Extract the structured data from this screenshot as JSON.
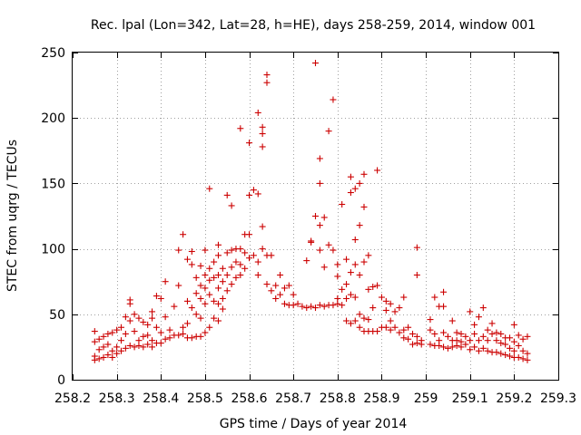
{
  "chart_data": {
    "type": "scatter",
    "title": "Rec. lpal (Lon=342, Lat=28, h=HE), days 258-259, 2014, window 001",
    "xlabel": "GPS time / Days of year 2014",
    "ylabel": "STEC from uqrg / TECUs",
    "xlim": [
      258.2,
      259.3
    ],
    "ylim": [
      0,
      250
    ],
    "grid": true,
    "marker": "+",
    "marker_color": "#cc0000",
    "x_ticks": [
      "258.2",
      "258.3",
      "258.4",
      "258.5",
      "258.6",
      "258.7",
      "258.8",
      "258.9",
      "259",
      "259.1",
      "259.2",
      "259.3"
    ],
    "y_ticks": [
      "0",
      "50",
      "100",
      "150",
      "200",
      "250"
    ],
    "x_tick_values": [
      258.2,
      258.3,
      258.4,
      258.5,
      258.6,
      258.7,
      258.8,
      258.9,
      259.0,
      259.1,
      259.2,
      259.3
    ],
    "y_tick_values": [
      0,
      50,
      100,
      150,
      200,
      250
    ],
    "points": [
      [
        258.25,
        37
      ],
      [
        258.25,
        29
      ],
      [
        258.25,
        18
      ],
      [
        258.25,
        15
      ],
      [
        258.26,
        31
      ],
      [
        258.26,
        23
      ],
      [
        258.26,
        16
      ],
      [
        258.27,
        33
      ],
      [
        258.27,
        25
      ],
      [
        258.27,
        17
      ],
      [
        258.28,
        35
      ],
      [
        258.28,
        27
      ],
      [
        258.28,
        19
      ],
      [
        258.29,
        36
      ],
      [
        258.29,
        22
      ],
      [
        258.29,
        17
      ],
      [
        258.3,
        38
      ],
      [
        258.3,
        25
      ],
      [
        258.3,
        20
      ],
      [
        258.31,
        40
      ],
      [
        258.31,
        30
      ],
      [
        258.31,
        22
      ],
      [
        258.32,
        48
      ],
      [
        258.32,
        35
      ],
      [
        258.32,
        24
      ],
      [
        258.33,
        61
      ],
      [
        258.33,
        58
      ],
      [
        258.33,
        45
      ],
      [
        258.33,
        26
      ],
      [
        258.34,
        50
      ],
      [
        258.34,
        37
      ],
      [
        258.34,
        25
      ],
      [
        258.35,
        47
      ],
      [
        258.35,
        30
      ],
      [
        258.35,
        26
      ],
      [
        258.36,
        44
      ],
      [
        258.36,
        33
      ],
      [
        258.36,
        25
      ],
      [
        258.37,
        42
      ],
      [
        258.37,
        34
      ],
      [
        258.37,
        27
      ],
      [
        258.38,
        52
      ],
      [
        258.38,
        47
      ],
      [
        258.38,
        30
      ],
      [
        258.38,
        25
      ],
      [
        258.39,
        64
      ],
      [
        258.39,
        40
      ],
      [
        258.39,
        28
      ],
      [
        258.4,
        62
      ],
      [
        258.4,
        36
      ],
      [
        258.4,
        28
      ],
      [
        258.41,
        75
      ],
      [
        258.41,
        48
      ],
      [
        258.41,
        31
      ],
      [
        258.42,
        38
      ],
      [
        258.42,
        32
      ],
      [
        258.43,
        56
      ],
      [
        258.43,
        34
      ],
      [
        258.44,
        99
      ],
      [
        258.44,
        72
      ],
      [
        258.44,
        34
      ],
      [
        258.45,
        111
      ],
      [
        258.45,
        40
      ],
      [
        258.45,
        35
      ],
      [
        258.46,
        92
      ],
      [
        258.46,
        60
      ],
      [
        258.46,
        43
      ],
      [
        258.46,
        32
      ],
      [
        258.47,
        98
      ],
      [
        258.47,
        88
      ],
      [
        258.47,
        55
      ],
      [
        258.47,
        32
      ],
      [
        258.48,
        78
      ],
      [
        258.48,
        66
      ],
      [
        258.48,
        50
      ],
      [
        258.48,
        33
      ],
      [
        258.49,
        87
      ],
      [
        258.49,
        72
      ],
      [
        258.49,
        62
      ],
      [
        258.49,
        47
      ],
      [
        258.49,
        33
      ],
      [
        258.5,
        99
      ],
      [
        258.5,
        80
      ],
      [
        258.5,
        70
      ],
      [
        258.5,
        58
      ],
      [
        258.5,
        36
      ],
      [
        258.51,
        146
      ],
      [
        258.51,
        85
      ],
      [
        258.51,
        76
      ],
      [
        258.51,
        65
      ],
      [
        258.51,
        40
      ],
      [
        258.52,
        90
      ],
      [
        258.52,
        78
      ],
      [
        258.52,
        60
      ],
      [
        258.52,
        47
      ],
      [
        258.53,
        103
      ],
      [
        258.53,
        95
      ],
      [
        258.53,
        80
      ],
      [
        258.53,
        70
      ],
      [
        258.53,
        58
      ],
      [
        258.53,
        45
      ],
      [
        258.54,
        85
      ],
      [
        258.54,
        75
      ],
      [
        258.54,
        62
      ],
      [
        258.54,
        54
      ],
      [
        258.55,
        141
      ],
      [
        258.55,
        97
      ],
      [
        258.55,
        80
      ],
      [
        258.55,
        68
      ],
      [
        258.56,
        133
      ],
      [
        258.56,
        99
      ],
      [
        258.56,
        86
      ],
      [
        258.56,
        73
      ],
      [
        258.57,
        100
      ],
      [
        258.57,
        90
      ],
      [
        258.57,
        78
      ],
      [
        258.58,
        192
      ],
      [
        258.58,
        100
      ],
      [
        258.58,
        88
      ],
      [
        258.58,
        80
      ],
      [
        258.59,
        111
      ],
      [
        258.59,
        97
      ],
      [
        258.59,
        85
      ],
      [
        258.6,
        181
      ],
      [
        258.6,
        141
      ],
      [
        258.6,
        111
      ],
      [
        258.6,
        93
      ],
      [
        258.61,
        145
      ],
      [
        258.61,
        95
      ],
      [
        258.62,
        204
      ],
      [
        258.62,
        142
      ],
      [
        258.62,
        90
      ],
      [
        258.62,
        80
      ],
      [
        258.63,
        193
      ],
      [
        258.63,
        188
      ],
      [
        258.63,
        178
      ],
      [
        258.63,
        117
      ],
      [
        258.63,
        100
      ],
      [
        258.64,
        233
      ],
      [
        258.64,
        227
      ],
      [
        258.64,
        95
      ],
      [
        258.64,
        73
      ],
      [
        258.65,
        95
      ],
      [
        258.65,
        68
      ],
      [
        258.66,
        72
      ],
      [
        258.66,
        62
      ],
      [
        258.67,
        80
      ],
      [
        258.67,
        65
      ],
      [
        258.68,
        70
      ],
      [
        258.68,
        58
      ],
      [
        258.69,
        72
      ],
      [
        258.69,
        57
      ],
      [
        258.7,
        65
      ],
      [
        258.7,
        57
      ],
      [
        258.71,
        58
      ],
      [
        258.72,
        56
      ],
      [
        258.73,
        91
      ],
      [
        258.73,
        55
      ],
      [
        258.74,
        106
      ],
      [
        258.74,
        105
      ],
      [
        258.74,
        56
      ],
      [
        258.75,
        242
      ],
      [
        258.75,
        125
      ],
      [
        258.75,
        55
      ],
      [
        258.76,
        169
      ],
      [
        258.76,
        150
      ],
      [
        258.76,
        118
      ],
      [
        258.76,
        99
      ],
      [
        258.76,
        57
      ],
      [
        258.77,
        124
      ],
      [
        258.77,
        86
      ],
      [
        258.77,
        56
      ],
      [
        258.78,
        190
      ],
      [
        258.78,
        103
      ],
      [
        258.78,
        57
      ],
      [
        258.79,
        214
      ],
      [
        258.79,
        99
      ],
      [
        258.79,
        57
      ],
      [
        258.8,
        88
      ],
      [
        258.8,
        79
      ],
      [
        258.8,
        62
      ],
      [
        258.8,
        58
      ],
      [
        258.81,
        134
      ],
      [
        258.81,
        69
      ],
      [
        258.81,
        57
      ],
      [
        258.82,
        92
      ],
      [
        258.82,
        73
      ],
      [
        258.82,
        62
      ],
      [
        258.82,
        45
      ],
      [
        258.83,
        155
      ],
      [
        258.83,
        143
      ],
      [
        258.83,
        82
      ],
      [
        258.83,
        65
      ],
      [
        258.83,
        43
      ],
      [
        258.84,
        146
      ],
      [
        258.84,
        107
      ],
      [
        258.84,
        88
      ],
      [
        258.84,
        63
      ],
      [
        258.84,
        45
      ],
      [
        258.85,
        150
      ],
      [
        258.85,
        118
      ],
      [
        258.85,
        80
      ],
      [
        258.85,
        50
      ],
      [
        258.85,
        40
      ],
      [
        258.86,
        157
      ],
      [
        258.86,
        132
      ],
      [
        258.86,
        90
      ],
      [
        258.86,
        47
      ],
      [
        258.86,
        37
      ],
      [
        258.87,
        95
      ],
      [
        258.87,
        69
      ],
      [
        258.87,
        46
      ],
      [
        258.87,
        37
      ],
      [
        258.88,
        71
      ],
      [
        258.88,
        55
      ],
      [
        258.88,
        37
      ],
      [
        258.89,
        160
      ],
      [
        258.89,
        72
      ],
      [
        258.89,
        37
      ],
      [
        258.9,
        63
      ],
      [
        258.9,
        40
      ],
      [
        258.91,
        60
      ],
      [
        258.91,
        53
      ],
      [
        258.91,
        40
      ],
      [
        258.92,
        58
      ],
      [
        258.92,
        45
      ],
      [
        258.92,
        38
      ],
      [
        258.93,
        52
      ],
      [
        258.93,
        40
      ],
      [
        258.94,
        55
      ],
      [
        258.94,
        36
      ],
      [
        258.95,
        63
      ],
      [
        258.95,
        38
      ],
      [
        258.95,
        32
      ],
      [
        258.96,
        40
      ],
      [
        258.96,
        31
      ],
      [
        258.97,
        35
      ],
      [
        258.97,
        27
      ],
      [
        258.98,
        101
      ],
      [
        258.98,
        80
      ],
      [
        258.98,
        33
      ],
      [
        258.98,
        28
      ],
      [
        258.99,
        30
      ],
      [
        258.99,
        27
      ],
      [
        259.01,
        46
      ],
      [
        259.01,
        38
      ],
      [
        259.01,
        27
      ],
      [
        259.02,
        63
      ],
      [
        259.02,
        35
      ],
      [
        259.02,
        26
      ],
      [
        259.03,
        56
      ],
      [
        259.03,
        30
      ],
      [
        259.03,
        26
      ],
      [
        259.04,
        67
      ],
      [
        259.04,
        56
      ],
      [
        259.04,
        36
      ],
      [
        259.04,
        25
      ],
      [
        259.05,
        33
      ],
      [
        259.05,
        24
      ],
      [
        259.06,
        45
      ],
      [
        259.06,
        30
      ],
      [
        259.06,
        25
      ],
      [
        259.07,
        36
      ],
      [
        259.07,
        30
      ],
      [
        259.07,
        26
      ],
      [
        259.08,
        35
      ],
      [
        259.08,
        29
      ],
      [
        259.08,
        25
      ],
      [
        259.09,
        33
      ],
      [
        259.09,
        27
      ],
      [
        259.1,
        52
      ],
      [
        259.1,
        30
      ],
      [
        259.1,
        23
      ],
      [
        259.11,
        42
      ],
      [
        259.11,
        35
      ],
      [
        259.11,
        25
      ],
      [
        259.12,
        48
      ],
      [
        259.12,
        30
      ],
      [
        259.12,
        22
      ],
      [
        259.13,
        55
      ],
      [
        259.13,
        33
      ],
      [
        259.13,
        24
      ],
      [
        259.14,
        38
      ],
      [
        259.14,
        30
      ],
      [
        259.14,
        22
      ],
      [
        259.15,
        43
      ],
      [
        259.15,
        35
      ],
      [
        259.15,
        21
      ],
      [
        259.16,
        36
      ],
      [
        259.16,
        30
      ],
      [
        259.16,
        21
      ],
      [
        259.17,
        35
      ],
      [
        259.17,
        28
      ],
      [
        259.17,
        20
      ],
      [
        259.18,
        32
      ],
      [
        259.18,
        27
      ],
      [
        259.18,
        19
      ],
      [
        259.19,
        32
      ],
      [
        259.19,
        24
      ],
      [
        259.19,
        18
      ],
      [
        259.2,
        42
      ],
      [
        259.2,
        29
      ],
      [
        259.2,
        22
      ],
      [
        259.2,
        17
      ],
      [
        259.21,
        34
      ],
      [
        259.21,
        26
      ],
      [
        259.21,
        17
      ],
      [
        259.22,
        31
      ],
      [
        259.22,
        22
      ],
      [
        259.22,
        16
      ],
      [
        259.23,
        33
      ],
      [
        259.23,
        20
      ],
      [
        259.23,
        15
      ]
    ]
  }
}
